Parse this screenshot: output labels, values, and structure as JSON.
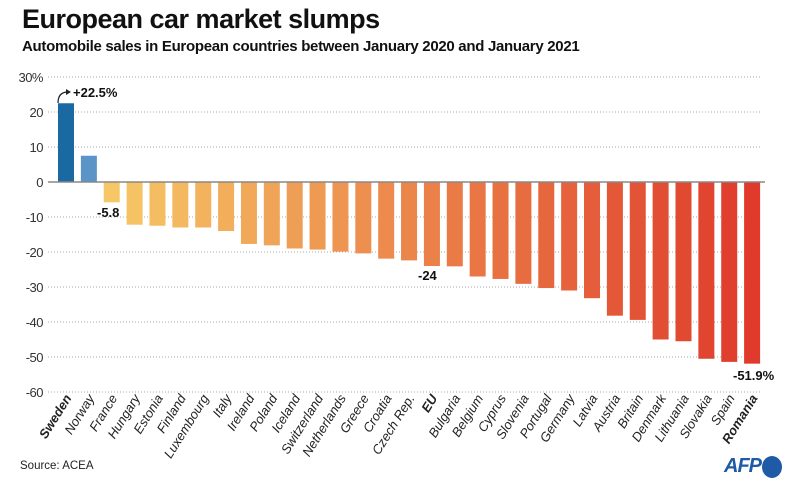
{
  "title": "European car market slumps",
  "subtitle": "Automobile sales in European countries between January 2020 and January 2021",
  "source": "Source: ACEA",
  "logo": "AFP",
  "chart_data": {
    "type": "bar",
    "title": "European car market slumps",
    "subtitle": "Automobile sales in European countries between January 2020 and January 2021",
    "xlabel": "",
    "ylabel": "",
    "ylim": [
      -60,
      30
    ],
    "yticks": [
      30,
      20,
      10,
      0,
      -10,
      -20,
      -30,
      -40,
      -50,
      -60
    ],
    "ytick_labels": [
      "30%",
      "20",
      "10",
      "0",
      "-10",
      "-20",
      "-30",
      "-40",
      "-50",
      "-60"
    ],
    "grid": true,
    "categories": [
      "Sweden",
      "Norway",
      "France",
      "Hungary",
      "Estonia",
      "Finland",
      "Luxembourg",
      "Italy",
      "Ireland",
      "Poland",
      "Iceland",
      "Switzerland",
      "Netherlands",
      "Greece",
      "Croatia",
      "Czech Rep.",
      "EU",
      "Bulgaria",
      "Belgium",
      "Cyprus",
      "Slovenia",
      "Portugal",
      "Germany",
      "Latvia",
      "Austria",
      "Britain",
      "Denmark",
      "Lithuania",
      "Slovakia",
      "Spain",
      "Romania"
    ],
    "bold_categories": [
      "Sweden",
      "EU",
      "Romania"
    ],
    "values": [
      22.5,
      7.5,
      -5.8,
      -12.2,
      -12.5,
      -13.0,
      -13.0,
      -14.0,
      -17.7,
      -18.1,
      -19.0,
      -19.3,
      -19.9,
      -20.4,
      -21.9,
      -22.4,
      -24,
      -24.1,
      -27.0,
      -27.7,
      -29.1,
      -30.3,
      -31.0,
      -33.2,
      -38.2,
      -39.4,
      -45.0,
      -45.5,
      -50.5,
      -51.4,
      -51.9
    ],
    "annotations": [
      {
        "category": "Sweden",
        "text": "+22.5%"
      },
      {
        "category": "France",
        "text": "-5.8"
      },
      {
        "category": "EU",
        "text": "-24"
      },
      {
        "category": "Romania",
        "text": "-51.9%"
      }
    ],
    "colors": {
      "positive_dark": "#1b69a3",
      "positive_light": "#5b95c8",
      "negative_start": "#f6c766",
      "negative_end": "#df3a2b"
    }
  }
}
